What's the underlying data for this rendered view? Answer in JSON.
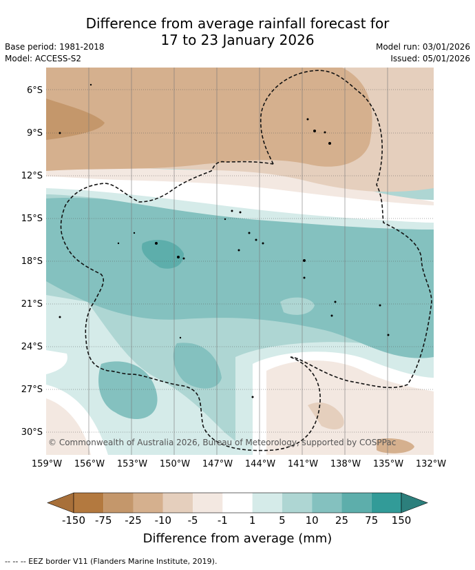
{
  "title": {
    "line1": "Difference from average rainfall forecast for",
    "line2": "17 to 23 January 2026"
  },
  "meta": {
    "base_period": "Base period: 1981-2018",
    "model": "Model: ACCESS-S2",
    "model_run": "Model run: 03/01/2026",
    "issued": "Issued: 05/01/2026"
  },
  "map": {
    "lat_labels": [
      "6°S",
      "9°S",
      "12°S",
      "15°S",
      "18°S",
      "21°S",
      "24°S",
      "27°S",
      "30°S"
    ],
    "lon_labels": [
      "159°W",
      "156°W",
      "153°W",
      "150°W",
      "147°W",
      "144°W",
      "141°W",
      "138°W",
      "135°W",
      "132°W"
    ],
    "copyright": "© Commonwealth of Australia 2026, Bureau of Meteorology, supported by COSPPac"
  },
  "colorbar": {
    "ticks": [
      "-150",
      "-75",
      "-25",
      "-10",
      "-5",
      "-1",
      "1",
      "5",
      "10",
      "25",
      "75",
      "150"
    ],
    "colors": [
      "#a8703a",
      "#b3793f",
      "#c4976b",
      "#d5b08e",
      "#e5cfbd",
      "#f3e8e1",
      "#ffffff",
      "#d5ebe9",
      "#aed6d3",
      "#84c1bf",
      "#5daeab",
      "#329b98",
      "#2c7f7c"
    ],
    "label": "Difference from average (mm)"
  },
  "footer": "--  --  -- EEZ border V11 (Flanders Marine Institute, 2019)."
}
